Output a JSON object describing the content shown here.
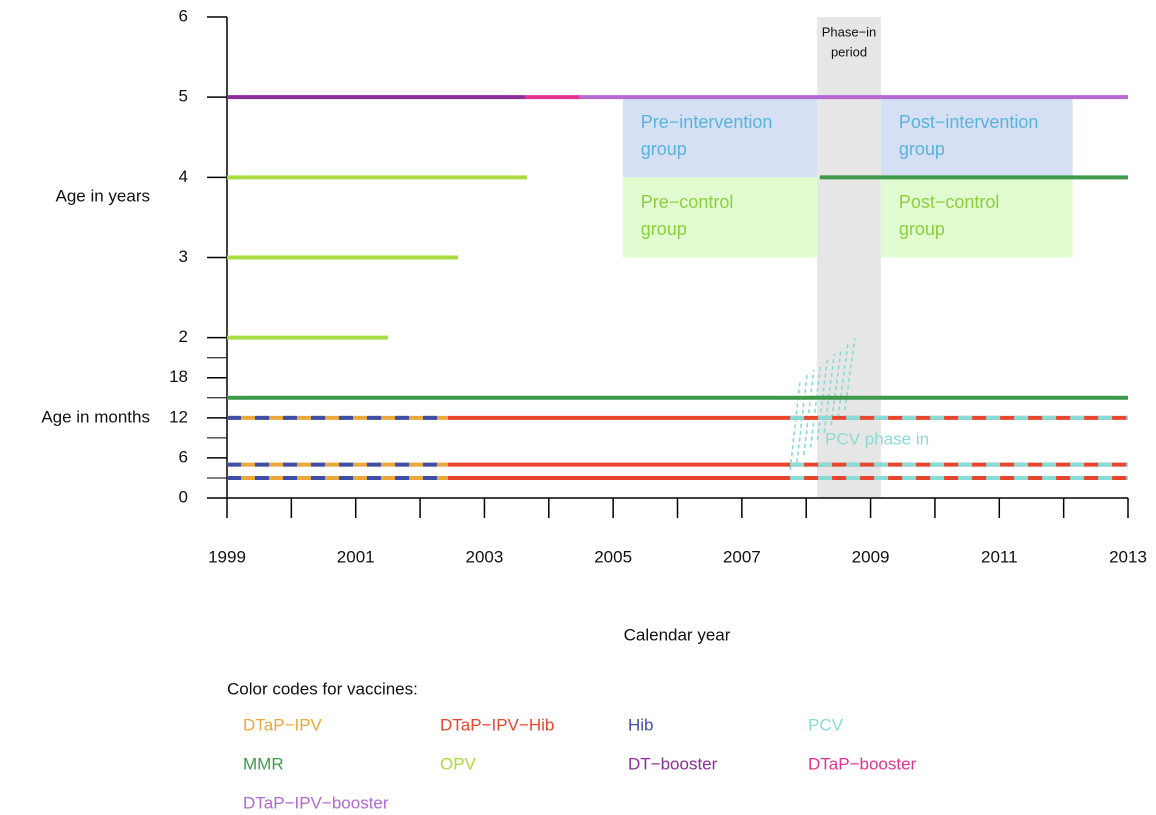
{
  "chart_data": {
    "type": "timeline",
    "xlabel": "Calendar year",
    "ylabel_years": "Age in years",
    "ylabel_months": "Age in months",
    "xlim": [
      1999,
      2013
    ],
    "xticks": [
      1999,
      2001,
      2003,
      2005,
      2007,
      2009,
      2011,
      2013
    ],
    "minor_xticks": [
      2000,
      2002,
      2004,
      2006,
      2008,
      2010,
      2012
    ],
    "ylim": [
      0,
      72
    ],
    "yticks": [
      0,
      6,
      12,
      18,
      {
        "value": 24,
        "label": "2"
      },
      {
        "value": 36,
        "label": "3"
      },
      {
        "value": 48,
        "label": "4"
      },
      {
        "value": 60,
        "label": "5"
      },
      {
        "value": 72,
        "label": "6"
      }
    ],
    "minor_yticks": [
      3,
      9,
      15,
      21
    ],
    "phase_in_period": {
      "label": [
        "Phase−in",
        "period"
      ],
      "start": 2008.17,
      "end": 2009.16,
      "color": "#e6e6e6"
    },
    "groups": [
      {
        "label": [
          "Pre−intervention",
          "group"
        ],
        "start": 2005.15,
        "end": 2008.17,
        "age_from": 48,
        "age_to": 60,
        "color": "#d5e0f5",
        "text_color": "#5ab3dc"
      },
      {
        "label": [
          "Pre−control",
          "group"
        ],
        "start": 2005.15,
        "end": 2008.17,
        "age_from": 36,
        "age_to": 48,
        "color": "#e2fcd2",
        "text_color": "#8ccf3e"
      },
      {
        "label": [
          "Post−intervention",
          "group"
        ],
        "start": 2009.16,
        "end": 2012.14,
        "age_from": 48,
        "age_to": 60,
        "color": "#d5e0f5",
        "text_color": "#5ab3dc"
      },
      {
        "label": [
          "Post−control",
          "group"
        ],
        "start": 2009.16,
        "end": 2012.14,
        "age_from": 36,
        "age_to": 48,
        "color": "#e2fcd2",
        "text_color": "#8ccf3e"
      }
    ],
    "pcv_phase_in": {
      "label": "PCV phase in",
      "start": 2007.75,
      "end": 2008.6,
      "color": "#88dcd6"
    },
    "legend_title": "Color codes for vaccines:",
    "series": [
      {
        "name": "DTaP−IPV",
        "color": "#eba83a",
        "segments": [
          {
            "age": 12,
            "start": 1999,
            "end": 2002.43
          },
          {
            "age": 5,
            "start": 1999,
            "end": 2002.43
          },
          {
            "age": 3,
            "start": 1999,
            "end": 2002.43
          }
        ]
      },
      {
        "name": "DTaP−IPV−Hib",
        "color": "#e8452c",
        "segments": [
          {
            "age": 12,
            "start": 2002.43,
            "end": 2013
          },
          {
            "age": 5,
            "start": 2002.43,
            "end": 2013
          },
          {
            "age": 3,
            "start": 2002.43,
            "end": 2013
          }
        ]
      },
      {
        "name": "Hib",
        "color": "#3f4fa8",
        "dashed": true,
        "segments": [
          {
            "age": 12,
            "start": 1999,
            "end": 2002.43
          },
          {
            "age": 5,
            "start": 1999,
            "end": 2002.43
          },
          {
            "age": 3,
            "start": 1999,
            "end": 2002.43
          }
        ]
      },
      {
        "name": "PCV",
        "color": "#88dcd6",
        "dashed": true,
        "segments": [
          {
            "age": 12,
            "start": 2007.75,
            "end": 2013
          },
          {
            "age": 5,
            "start": 2007.75,
            "end": 2013
          },
          {
            "age": 3,
            "start": 2007.75,
            "end": 2013
          }
        ]
      },
      {
        "name": "MMR",
        "color": "#3e9a4a",
        "segments": [
          {
            "age": 48,
            "start": 2008.21,
            "end": 2013
          },
          {
            "age": 15,
            "start": 1999,
            "end": 2013
          }
        ]
      },
      {
        "name": "OPV",
        "color": "#a8dc40",
        "segments": [
          {
            "age": 48,
            "start": 1999,
            "end": 2003.66
          },
          {
            "age": 36,
            "start": 1999,
            "end": 2002.59
          },
          {
            "age": 24,
            "start": 1999,
            "end": 2001.5
          }
        ]
      },
      {
        "name": "DT−booster",
        "color": "#8a2e98",
        "segments": [
          {
            "age": 60,
            "start": 1999,
            "end": 2003.63
          }
        ]
      },
      {
        "name": "DTaP−booster",
        "color": "#e2348c",
        "segments": [
          {
            "age": 60,
            "start": 2003.63,
            "end": 2004.48
          }
        ]
      },
      {
        "name": "DTaP−IPV−booster",
        "color": "#b468d0",
        "segments": [
          {
            "age": 60,
            "start": 2004.48,
            "end": 2013
          }
        ]
      }
    ]
  }
}
